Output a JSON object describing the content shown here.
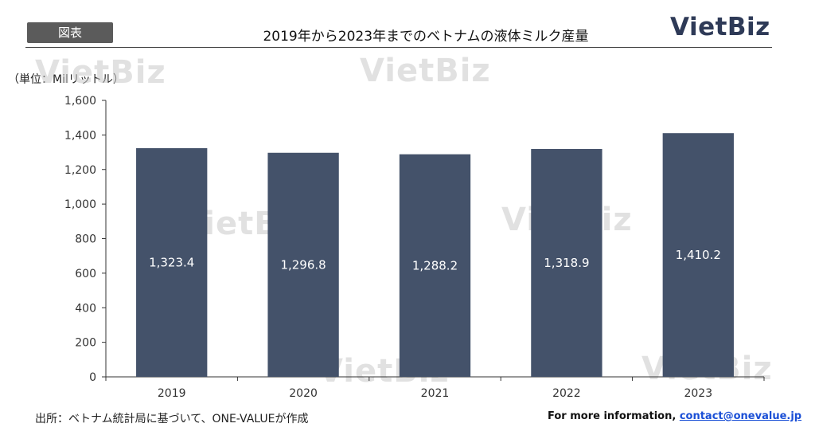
{
  "header": {
    "tag": "図表",
    "title": "2019年から2023年までのベトナムの液体ミルク産量",
    "logo": "VietBiz"
  },
  "watermark_text": "VietBiz",
  "unit_label": "（単位：Milリットル）",
  "chart_data": {
    "type": "bar",
    "categories": [
      "2019",
      "2020",
      "2021",
      "2022",
      "2023"
    ],
    "values": [
      1323.4,
      1296.8,
      1288.2,
      1318.9,
      1410.2
    ],
    "value_labels": [
      "1,323.4",
      "1,296.8",
      "1,288.2",
      "1,318.9",
      "1,410.2"
    ],
    "title": "",
    "xlabel": "",
    "ylabel": "",
    "ylim": [
      0,
      1600
    ],
    "yticks": [
      0,
      200,
      400,
      600,
      800,
      1000,
      1200,
      1400,
      1600
    ],
    "ytick_labels": [
      "0",
      "200",
      "400",
      "600",
      "800",
      "1,000",
      "1,200",
      "1,400",
      "1,600"
    ],
    "grid": false,
    "bar_color": "#44526a",
    "data_label_color": "#ffffff"
  },
  "footer": {
    "source": "出所：ベトナム統計局に基づいて、ONE-VALUEが作成",
    "info_prefix": "For more information, ",
    "info_link": "contact@onevalue.jp"
  }
}
